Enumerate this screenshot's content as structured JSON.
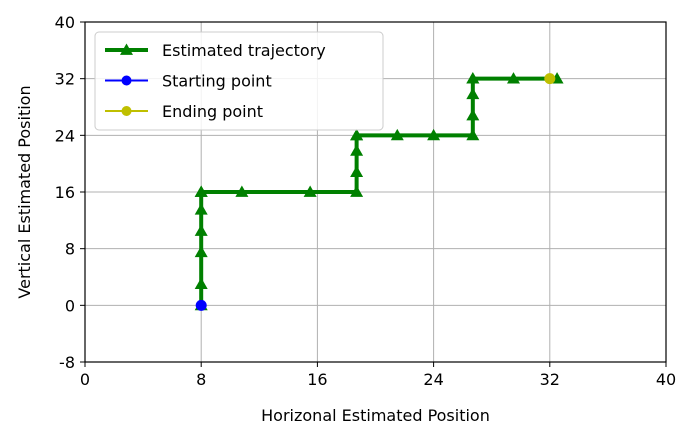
{
  "chart_data": {
    "type": "line",
    "title": "",
    "xlabel": "Horizonal Estimated Position",
    "ylabel": "Vertical Estimated Position",
    "xlim": [
      0,
      40
    ],
    "ylim": [
      -8,
      40
    ],
    "xticks": [
      "0",
      "8",
      "16",
      "24",
      "32",
      "40"
    ],
    "yticks": [
      "-8",
      "0",
      "8",
      "16",
      "24",
      "32",
      "40"
    ],
    "grid": true,
    "legend_position": "top-left",
    "series": [
      {
        "name": "Estimated trajectory",
        "color": "#008000",
        "marker": "triangle",
        "x": [
          8,
          8,
          8,
          8,
          8,
          8,
          8,
          10.8,
          15.5,
          18.7,
          18.7,
          18.7,
          18.7,
          18.7,
          21.5,
          24.0,
          26.7,
          26.7,
          26.7,
          26.7,
          26.7,
          29.5,
          32.5
        ],
        "y": [
          0,
          3,
          7.5,
          10.5,
          13.5,
          16,
          16,
          16,
          16,
          16,
          18.8,
          21.8,
          24,
          24,
          24,
          24,
          24,
          26.8,
          29.8,
          32,
          32,
          32,
          32
        ]
      },
      {
        "name": "Starting point",
        "color": "#0000ff",
        "marker": "circle",
        "x": [
          8
        ],
        "y": [
          0
        ]
      },
      {
        "name": "Ending point",
        "color": "#bfbf00",
        "marker": "circle",
        "x": [
          32
        ],
        "y": [
          32
        ]
      }
    ]
  }
}
